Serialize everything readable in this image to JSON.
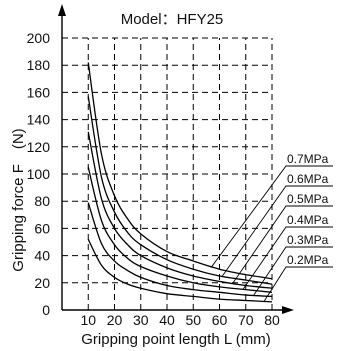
{
  "chart_data": {
    "type": "line",
    "title": "Model：HFY25",
    "xlabel": "Gripping point length L (mm)",
    "ylabel": "Gripping force F　(N)",
    "xlim": [
      0,
      80
    ],
    "ylim": [
      0,
      200
    ],
    "x_ticks": [
      "10",
      "20",
      "30",
      "40",
      "50",
      "60",
      "70",
      "80"
    ],
    "y_ticks": [
      "0",
      "20",
      "40",
      "60",
      "80",
      "100",
      "120",
      "140",
      "160",
      "180",
      "200"
    ],
    "grid": true,
    "legend_position": "right",
    "x": [
      10,
      15,
      20,
      25,
      30,
      40,
      50,
      60,
      70,
      80
    ],
    "series": [
      {
        "name": "0.7MPa",
        "values": [
          182,
          115,
          84,
          67,
          56,
          43,
          36,
          30,
          26,
          23
        ]
      },
      {
        "name": "0.6MPa",
        "values": [
          157,
          98,
          72,
          57,
          48,
          37,
          30,
          25,
          22,
          19
        ]
      },
      {
        "name": "0.5MPa",
        "values": [
          131,
          82,
          60,
          48,
          40,
          31,
          25,
          21,
          18,
          16
        ]
      },
      {
        "name": "0.4MPa",
        "values": [
          105,
          66,
          48,
          38,
          32,
          25,
          20,
          17,
          15,
          13
        ]
      },
      {
        "name": "0.3MPa",
        "values": [
          79,
          49,
          36,
          29,
          24,
          18,
          15,
          13,
          11,
          10
        ]
      },
      {
        "name": "0.2MPa",
        "values": [
          52,
          33,
          24,
          19,
          16,
          12,
          10,
          8,
          7,
          6
        ]
      }
    ]
  }
}
